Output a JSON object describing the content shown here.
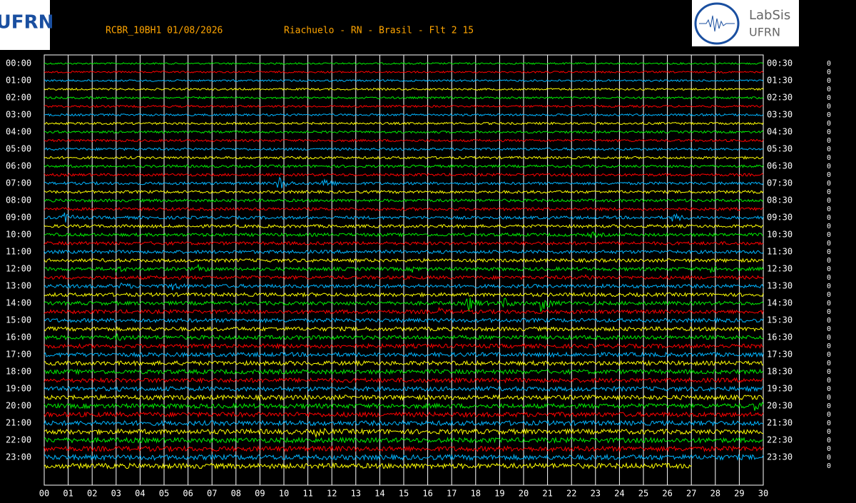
{
  "header": {
    "station": "RCBR_10BH1 01/08/2026",
    "location": "Riachuelo - RN - Brasil - Flt 2 15",
    "logo_left": "UFRN",
    "logo_right_title": "LabSis",
    "logo_right_sub": "UFRN"
  },
  "left_labels": [
    "00:00",
    "01:00",
    "02:00",
    "03:00",
    "04:00",
    "05:00",
    "06:00",
    "07:00",
    "08:00",
    "09:00",
    "10:00",
    "11:00",
    "12:00",
    "13:00",
    "14:00",
    "15:00",
    "16:00",
    "17:00",
    "18:00",
    "19:00",
    "20:00",
    "21:00",
    "22:00",
    "23:00"
  ],
  "right_labels": [
    "00:30",
    "01:30",
    "02:30",
    "03:30",
    "04:30",
    "05:30",
    "06:30",
    "07:30",
    "08:30",
    "09:30",
    "10:30",
    "11:30",
    "12:30",
    "13:30",
    "14:30",
    "15:30",
    "16:30",
    "17:30",
    "18:30",
    "19:30",
    "20:30",
    "21:30",
    "22:30",
    "23:30"
  ],
  "x_labels": [
    "00",
    "01",
    "02",
    "03",
    "04",
    "05",
    "06",
    "07",
    "08",
    "09",
    "10",
    "11",
    "12",
    "13",
    "14",
    "15",
    "16",
    "17",
    "18",
    "19",
    "20",
    "21",
    "22",
    "23",
    "24",
    "25",
    "26",
    "27",
    "28",
    "29",
    "30"
  ],
  "side_values": [
    "0",
    "0",
    "0",
    "0",
    "0",
    "0",
    "0",
    "0",
    "0",
    "0",
    "0",
    "0",
    "0",
    "0",
    "0",
    "0",
    "0",
    "0",
    "0",
    "0",
    "0",
    "0",
    "0",
    "0",
    "0",
    "0",
    "0",
    "0",
    "0",
    "0",
    "0",
    "0",
    "0",
    "0",
    "0",
    "0",
    "0",
    "0",
    "0",
    "0",
    "0",
    "0",
    "0",
    "0",
    "0",
    "0",
    "0",
    "0"
  ],
  "trace_colors": [
    "#00ee00",
    "#ff0000",
    "#00b4ff",
    "#ffff00"
  ]
}
